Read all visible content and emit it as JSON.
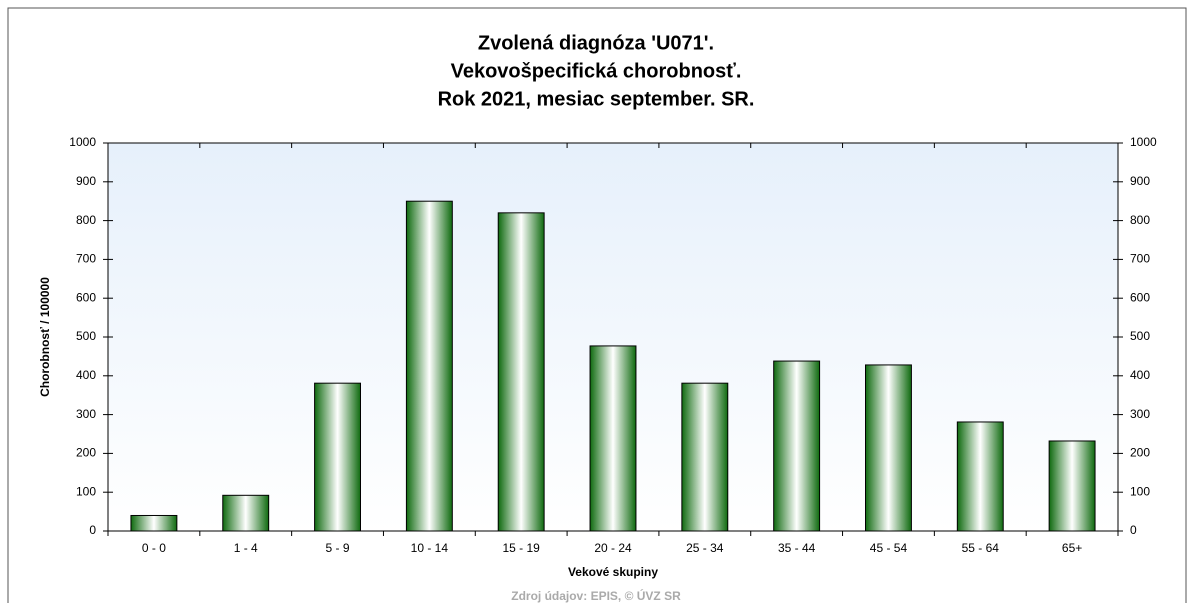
{
  "chart_data": {
    "type": "bar",
    "title": [
      "Zvolená diagnóza 'U071'.",
      "Vekovošpecifická chorobnosť.",
      "Rok 2021, mesiac september. SR."
    ],
    "y_label": "Chorobnosť / 100000",
    "x_label": "Vekové skupiny",
    "source": "Zdroj údajov: EPIS, © ÚVZ SR",
    "categories": [
      "0 - 0",
      "1 - 4",
      "5 - 9",
      "10 - 14",
      "15 - 19",
      "20 - 24",
      "25 - 34",
      "35 - 44",
      "45 - 54",
      "55 - 64",
      "65+"
    ],
    "values": [
      40,
      92,
      381,
      850,
      820,
      477,
      381,
      438,
      428,
      281,
      232
    ],
    "color": "#1f7a1f",
    "ylim": [
      0,
      1000
    ],
    "yticks": [
      0,
      100,
      200,
      300,
      400,
      500,
      600,
      700,
      800,
      900,
      1000
    ]
  }
}
